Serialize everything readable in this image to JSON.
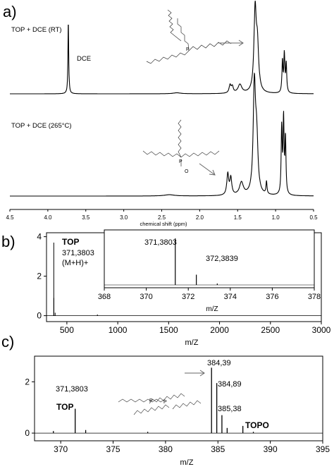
{
  "chart_data": [
    {
      "panel": "a)",
      "type": "line",
      "xlabel": "chemical shift (ppm)",
      "xlim": [
        4.5,
        0.5
      ],
      "x_reversed": true,
      "xticks": [
        "4.5",
        "4.0",
        "3.5",
        "3.0",
        "2.5",
        "2.0",
        "1.5",
        "1.0",
        "0.5"
      ],
      "series": [
        {
          "name": "TOP + DCE (RT)",
          "annotation": "DCE",
          "peaks": [
            {
              "x": 3.73,
              "h": 0.92,
              "w": 0.006
            },
            {
              "x": 2.3,
              "h": 0.012,
              "w": 0.06
            },
            {
              "x": 1.6,
              "h": 0.1,
              "w": 0.015
            },
            {
              "x": 1.57,
              "h": 0.08,
              "w": 0.015
            },
            {
              "x": 1.47,
              "h": 0.11,
              "w": 0.03
            },
            {
              "x": 1.27,
              "h": 1.0,
              "w": 0.018
            },
            {
              "x": 1.24,
              "h": 0.55,
              "w": 0.02
            },
            {
              "x": 0.91,
              "h": 0.4,
              "w": 0.008
            },
            {
              "x": 0.885,
              "h": 0.48,
              "w": 0.008
            },
            {
              "x": 0.86,
              "h": 0.36,
              "w": 0.008
            }
          ]
        },
        {
          "name": "TOP + DCE (265°C)",
          "peaks": [
            {
              "x": 2.4,
              "h": 0.012,
              "w": 0.08
            },
            {
              "x": 1.63,
              "h": 0.2,
              "w": 0.015
            },
            {
              "x": 1.59,
              "h": 0.16,
              "w": 0.015
            },
            {
              "x": 1.45,
              "h": 0.12,
              "w": 0.03
            },
            {
              "x": 1.28,
              "h": 1.0,
              "w": 0.018
            },
            {
              "x": 1.25,
              "h": 0.5,
              "w": 0.02
            },
            {
              "x": 1.12,
              "h": 0.12,
              "w": 0.008
            },
            {
              "x": 0.92,
              "h": 0.62,
              "w": 0.008
            },
            {
              "x": 0.895,
              "h": 0.7,
              "w": 0.008
            },
            {
              "x": 0.87,
              "h": 0.52,
              "w": 0.008
            }
          ]
        }
      ]
    },
    {
      "panel": "b)",
      "type": "line",
      "xlabel": "m/Z",
      "xlim": [
        300,
        3000
      ],
      "ylim": [
        -0.3,
        4.2
      ],
      "xticks": [
        "500",
        "1000",
        "1500",
        "2000",
        "2500",
        "3000"
      ],
      "yticks": [
        "0",
        "2",
        "4"
      ],
      "series": [
        {
          "name": "spectrum",
          "peaks": [
            {
              "x": 371.38,
              "y": 3.7
            },
            {
              "x": 372.38,
              "y": 0.9
            },
            {
              "x": 385,
              "y": 0.15
            },
            {
              "x": 800,
              "y": 0.06
            }
          ]
        }
      ],
      "annotations": [
        "TOP",
        "371,3803",
        "(M+H)+"
      ],
      "inset": {
        "xlabel": "m/Z",
        "xlim": [
          368,
          378
        ],
        "xticks": [
          "368",
          "370",
          "372",
          "374",
          "376",
          "378"
        ],
        "peaks": [
          {
            "x": 371.3803,
            "y": 1.0,
            "label": "371,3803"
          },
          {
            "x": 372.3839,
            "y": 0.22,
            "label": "372,3839"
          },
          {
            "x": 373.38,
            "y": 0.03
          }
        ]
      }
    },
    {
      "panel": "c)",
      "type": "line",
      "xlabel": "m/Z",
      "xlim": [
        367.5,
        395
      ],
      "ylim": [
        -0.3,
        3.0
      ],
      "xticks": [
        "370",
        "375",
        "380",
        "385",
        "390",
        "395"
      ],
      "yticks": [
        "0",
        "2"
      ],
      "series": [
        {
          "name": "spectrum",
          "peaks": [
            {
              "x": 369.3,
              "y": 0.08
            },
            {
              "x": 371.38,
              "y": 0.95,
              "label": "371,3803"
            },
            {
              "x": 372.38,
              "y": 0.12
            },
            {
              "x": 378.3,
              "y": 0.05
            },
            {
              "x": 384.39,
              "y": 2.55,
              "label": "384,39"
            },
            {
              "x": 384.89,
              "y": 1.95,
              "label": "384,89"
            },
            {
              "x": 385.38,
              "y": 0.7,
              "label": "385,38"
            },
            {
              "x": 385.88,
              "y": 0.2
            },
            {
              "x": 387.38,
              "y": 0.28
            },
            {
              "x": 388.38,
              "y": 0.05
            }
          ]
        }
      ],
      "annotations": [
        "TOP",
        "TOPO"
      ]
    }
  ],
  "labels": {
    "panel_a": "a)",
    "panel_b": "b)",
    "panel_c": "c)"
  }
}
